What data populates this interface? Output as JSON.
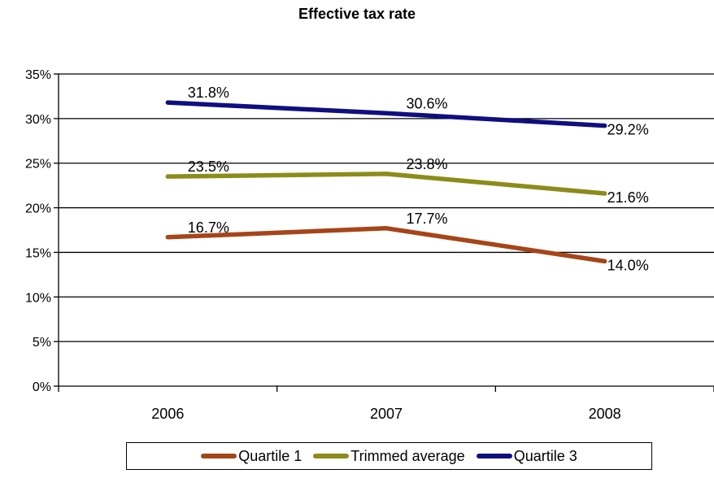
{
  "chart_data": {
    "type": "line",
    "title": "Effective tax rate",
    "categories": [
      "2006",
      "2007",
      "2008"
    ],
    "ylim": [
      0,
      35
    ],
    "yticks": [
      "0%",
      "5%",
      "10%",
      "15%",
      "20%",
      "25%",
      "30%",
      "35%"
    ],
    "grid": true,
    "legend_position": "bottom",
    "series": [
      {
        "name": "Quartile 1",
        "color": "#A64519",
        "values": [
          16.7,
          17.7,
          14.0
        ],
        "labels": [
          "16.7%",
          "17.7%",
          "14.0%"
        ]
      },
      {
        "name": "Trimmed average",
        "color": "#8C8C1A",
        "values": [
          23.5,
          23.8,
          21.6
        ],
        "labels": [
          "23.5%",
          "23.8%",
          "21.6%"
        ]
      },
      {
        "name": "Quartile 3",
        "color": "#0F0F80",
        "values": [
          31.8,
          30.6,
          29.2
        ],
        "labels": [
          "31.8%",
          "30.6%",
          "29.2%"
        ]
      }
    ]
  }
}
